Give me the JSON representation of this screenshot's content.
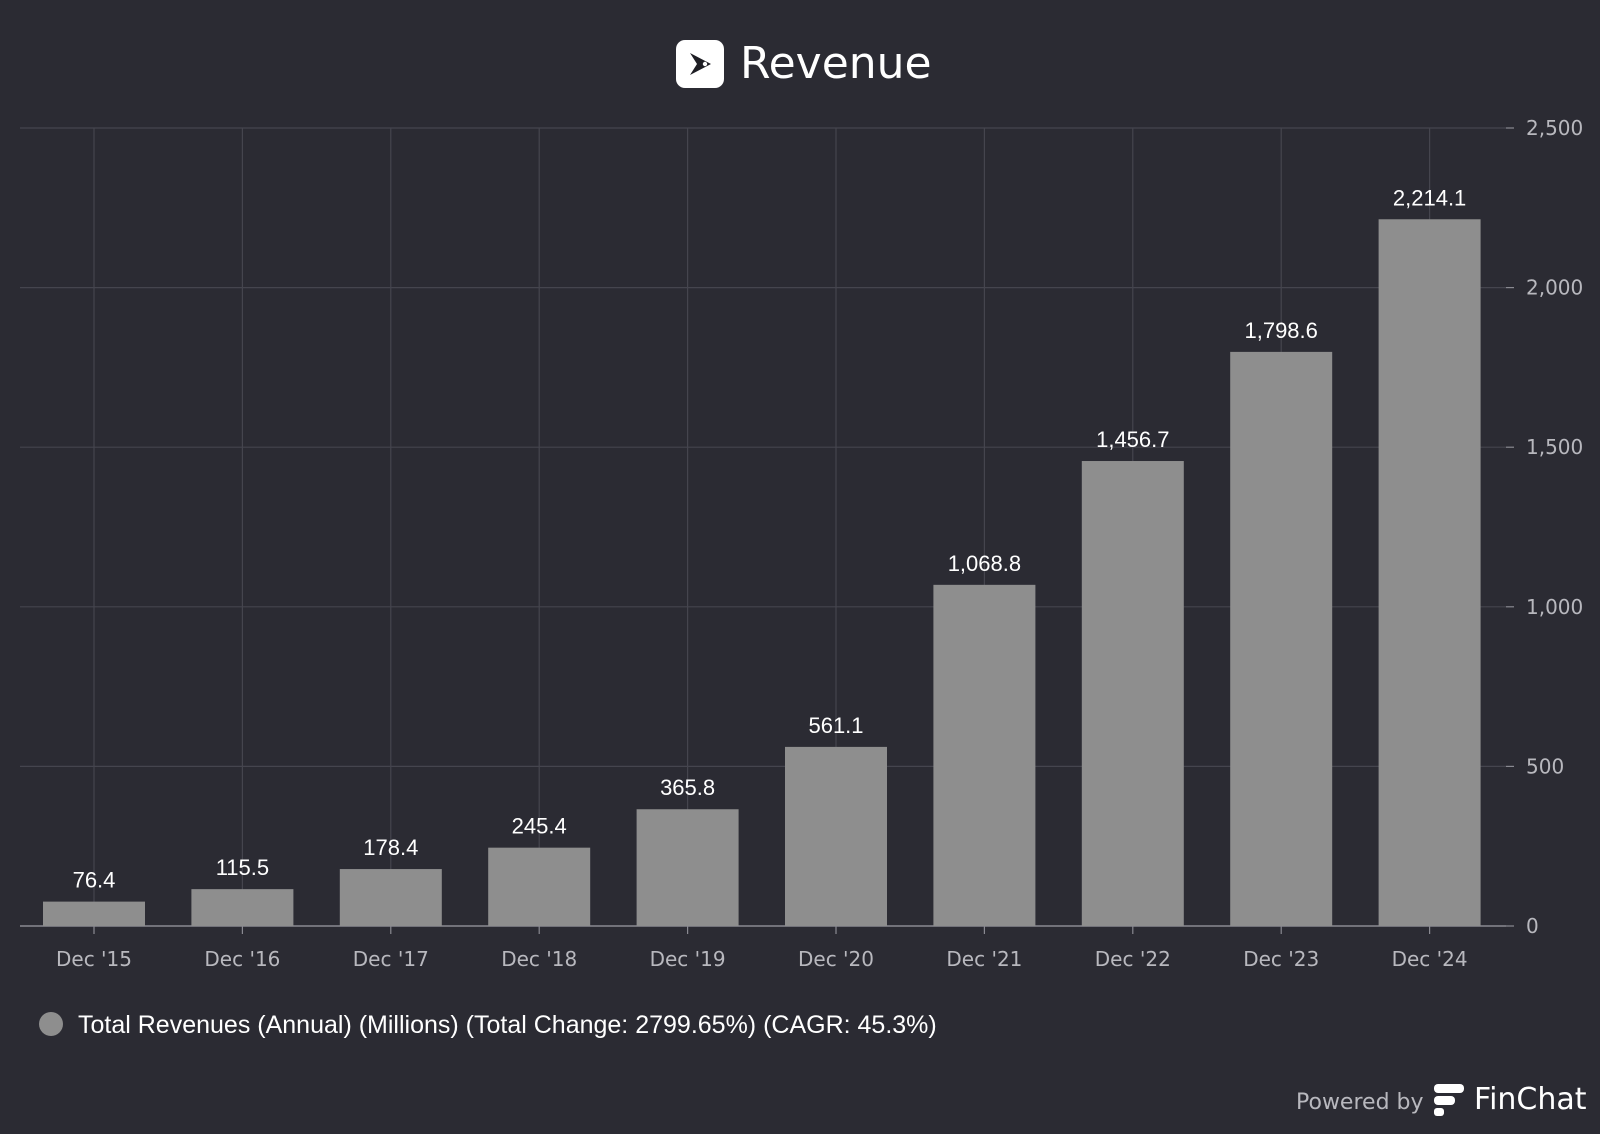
{
  "chart_title": "Revenue",
  "colors": {
    "background": "#2b2b33",
    "bar": "#8e8e8e",
    "grid": "#45454e",
    "baseline": "#8a8a92",
    "text": "#ffffff",
    "muted_text": "#b8b8be",
    "logo_bg": "#ffffff"
  },
  "icons": {
    "title_logo": "company-logo-icon",
    "brand_logo": "finchat-logo-icon",
    "legend_marker": "legend-circle-icon"
  },
  "chart_data": {
    "type": "bar",
    "title": "Revenue",
    "categories": [
      "Dec '15",
      "Dec '16",
      "Dec '17",
      "Dec '18",
      "Dec '19",
      "Dec '20",
      "Dec '21",
      "Dec '22",
      "Dec '23",
      "Dec '24"
    ],
    "series": [
      {
        "name": "Total Revenues (Annual) (Millions) (Total Change: 2799.65%) (CAGR: 45.3%)",
        "values": [
          76.4,
          115.5,
          178.4,
          245.4,
          365.8,
          561.1,
          1068.8,
          1456.7,
          1798.6,
          2214.1
        ],
        "labels": [
          "76.4",
          "115.5",
          "178.4",
          "245.4",
          "365.8",
          "561.1",
          "1,068.8",
          "1,456.7",
          "1,798.6",
          "2,214.1"
        ]
      }
    ],
    "ylim": [
      0,
      2500
    ],
    "yticks": [
      0,
      500,
      1000,
      1500,
      2000,
      2500
    ],
    "ytick_labels": [
      "0",
      "500",
      "1,000",
      "1,500",
      "2,000",
      "2,500"
    ],
    "y_axis_side": "right",
    "grid": true,
    "legend_position": "bottom-left"
  },
  "footer": {
    "powered_by": "Powered by",
    "brand": "FinChat"
  }
}
